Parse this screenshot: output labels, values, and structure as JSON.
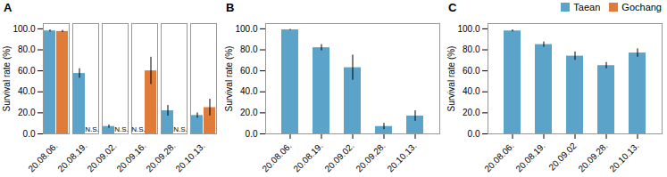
{
  "chart_data": [
    {
      "type": "bar",
      "title": "A",
      "ylabel": "Survival rate (%)",
      "categories": [
        "20.08.06.",
        "20.08.19.",
        "20.09.02.",
        "20.09.16.",
        "20.09.28.",
        "20.10.13."
      ],
      "series": [
        {
          "name": "Taean",
          "color": "#5ba3c9",
          "values": [
            98.0,
            57.5,
            7.0,
            null,
            22.0,
            17.5
          ],
          "errors": [
            1.0,
            4.5,
            1.5,
            null,
            5.0,
            2.5
          ]
        },
        {
          "name": "Gochang",
          "color": "#e07b39",
          "values": [
            97.5,
            null,
            null,
            60.0,
            null,
            25.0
          ],
          "errors": [
            1.0,
            null,
            null,
            13.0,
            null,
            8.0
          ]
        }
      ],
      "annotations": [
        {
          "text": "N.S.",
          "category": "20.09.16.",
          "series": "Taean",
          "y": 2.0
        },
        {
          "text": "N.S.",
          "category": "20.08.19.",
          "series": "Gochang",
          "y": 2.0
        },
        {
          "text": "N.S.",
          "category": "20.09.02.",
          "series": "Gochang",
          "y": 2.0
        },
        {
          "text": "N.S.",
          "category": "20.09.28.",
          "series": "Gochang",
          "y": 2.0
        }
      ],
      "ylim": [
        0,
        105
      ],
      "yticks": [
        {
          "value": 0,
          "label": "0.0"
        },
        {
          "value": 20,
          "label": "20.0"
        },
        {
          "value": 40,
          "label": "40.0"
        },
        {
          "value": 60,
          "label": "60.0"
        },
        {
          "value": 80,
          "label": "80.0"
        },
        {
          "value": 100,
          "label": "100.0"
        }
      ],
      "grid": false,
      "legend": "upper right"
    },
    {
      "type": "bar",
      "title": "B",
      "ylabel": "Survival rate (%)",
      "categories": [
        "20.08.06.",
        "20.08.19.",
        "20.09.02.",
        "20.09.28.",
        "20.10.13."
      ],
      "values": [
        99.0,
        82.0,
        63.0,
        7.0,
        17.0
      ],
      "errors": [
        0.5,
        3.0,
        12.0,
        3.0,
        5.0
      ],
      "color": "#5ba3c9",
      "ylim": [
        0,
        105
      ],
      "yticks": [
        {
          "value": 0,
          "label": "0.0"
        },
        {
          "value": 20,
          "label": "20.0"
        },
        {
          "value": 40,
          "label": "40.0"
        },
        {
          "value": 60,
          "label": "60.0"
        },
        {
          "value": 80,
          "label": "80.0"
        },
        {
          "value": 100,
          "label": "100.0"
        }
      ],
      "grid": false
    },
    {
      "type": "bar",
      "title": "C",
      "ylabel": "Survival rate (%)",
      "categories": [
        "20.08.06.",
        "20.08.19.",
        "20.09.02",
        "20.09.28.",
        "20.10.13."
      ],
      "values": [
        98.0,
        85.0,
        74.0,
        65.0,
        77.0
      ],
      "errors": [
        1.0,
        2.5,
        4.0,
        3.0,
        4.0
      ],
      "color": "#5ba3c9",
      "ylim": [
        0,
        105
      ],
      "yticks": [
        {
          "value": 0,
          "label": "0.0"
        },
        {
          "value": 20,
          "label": "20.0"
        },
        {
          "value": 40,
          "label": "40.0"
        },
        {
          "value": 60,
          "label": "60.0"
        },
        {
          "value": 80,
          "label": "80.0"
        },
        {
          "value": 100,
          "label": "100.0"
        }
      ],
      "grid": false
    }
  ]
}
